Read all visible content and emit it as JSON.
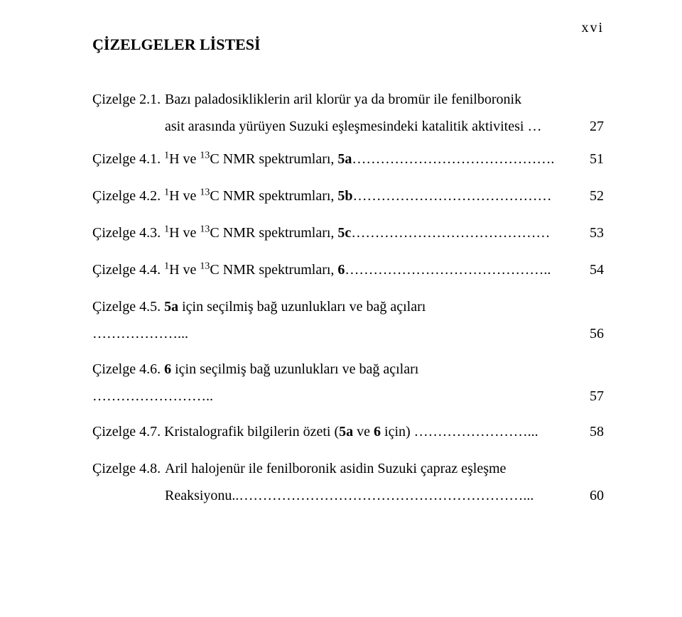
{
  "page_number_header": "xvi",
  "heading": "ÇİZELGELER LİSTESİ",
  "entries": [
    {
      "label": "Çizelge 2.1.",
      "line1": "Bazı paladosikliklerin aril klorür ya da bromür ile fenilboronik",
      "line2": "asit arasında yürüyen Suzuki eşleşmesindeki katalitik aktivitesi …",
      "page": "27",
      "multiline": true,
      "superscripts": false
    },
    {
      "label": "Çizelge 4.1.",
      "text_prefix": "",
      "sup1": "1",
      "mid1": "H ve ",
      "sup2": "13",
      "mid2": "C NMR spektrumları, ",
      "bold": "5a",
      "suffix": "…………………………………….",
      "page": "51",
      "superscripts": true
    },
    {
      "label": "Çizelge 4.2.",
      "sup1": "1",
      "mid1": "H ve ",
      "sup2": "13",
      "mid2": "C NMR spektrumları, ",
      "bold": "5b",
      "suffix": "……………………………………",
      "page": "52",
      "superscripts": true
    },
    {
      "label": "Çizelge 4.3.",
      "sup1": "1",
      "mid1": "H ve ",
      "sup2": "13",
      "mid2": "C NMR spektrumları, ",
      "bold": "5c",
      "suffix": "……………………………………",
      "page": "53",
      "superscripts": true
    },
    {
      "label": "Çizelge 4.4.",
      "sup1": "1",
      "mid1": "H ve ",
      "sup2": "13",
      "mid2": "C NMR spektrumları, ",
      "bold": "6",
      "suffix": "……………………………………..",
      "page": "54",
      "superscripts": true
    },
    {
      "label": "Çizelge 4.5.",
      "bold": "5a",
      "text_rest": " için seçilmiş bağ uzunlukları ve bağ açıları",
      "line2": "………………...",
      "page": "56",
      "multiline_wrap": true
    },
    {
      "label": "Çizelge 4.6.",
      "bold": "6",
      "text_rest": " için seçilmiş bağ uzunlukları ve bağ açıları",
      "line2": "……………………..",
      "page": "57",
      "multiline_wrap": true
    },
    {
      "label": "Çizelge 4.7.",
      "text": "Kristalografik bilgilerin özeti (",
      "bold": "5a",
      "text2": " ve ",
      "bold2": "6",
      "text3": " için) ……………………...",
      "page": "58",
      "plain_with_bold": true
    },
    {
      "label": "Çizelge 4.8.",
      "line1": "Aril halojenür ile fenilboronik asidin Suzuki çapraz eşleşme",
      "line2": "Reaksiyonu..……………………………………………………...",
      "page": "60",
      "multiline": true,
      "superscripts": false,
      "extra_top_gap": true
    }
  ]
}
